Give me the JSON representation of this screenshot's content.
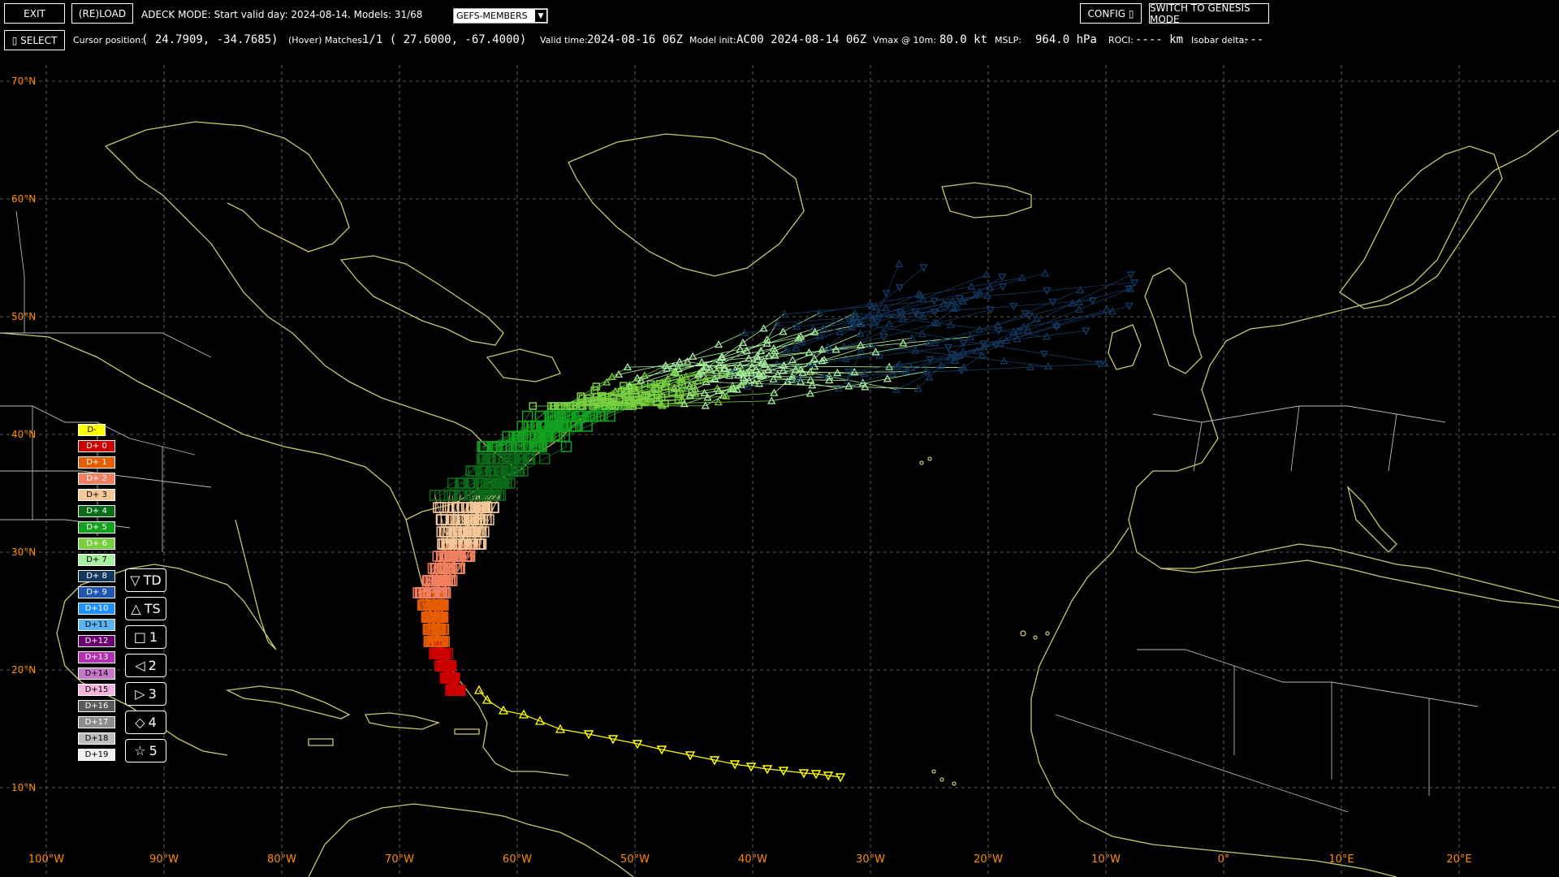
{
  "toolbar": {
    "exit_label": "EXIT",
    "reload_label": "(RE)LOAD",
    "mode_text": "ADECK MODE: Start valid day: 2024-08-14. Models: 31/68",
    "model_select": "GEFS-MEMBERS",
    "config_label": "CONFIG ▯",
    "genesis_label": "SWITCH TO GENESIS MODE",
    "select_label": "▯ SELECT",
    "cursor_label": "Cursor position:",
    "cursor_value": "( 24.7909,  -34.7685)",
    "hover_label": "(Hover) Matches:",
    "hover_value": "1/1  ( 27.6000,  -67.4000)",
    "valid_label": "Valid time:",
    "valid_value": "2024-08-16 06Z",
    "init_label": "Model init:",
    "init_value": "AC00 2024-08-14 06Z",
    "vmax_label": "Vmax @ 10m:",
    "vmax_value": "80.0 kt",
    "mslp_label": "MSLP:",
    "mslp_value": "964.0 hPa",
    "roci_label": "ROCI:",
    "roci_value": "---- km",
    "isobar_label": "Isobar delta:",
    "isobar_value": "---"
  },
  "map": {
    "lat_labels": [
      "70°N",
      "60°N",
      "50°N",
      "40°N",
      "30°N",
      "20°N",
      "10°N"
    ],
    "lon_labels": [
      "100°W",
      "90°W",
      "80°W",
      "70°W",
      "60°W",
      "50°W",
      "40°W",
      "30°W",
      "20°W",
      "10°W",
      "0°",
      "10°E",
      "20°E"
    ],
    "colors": {
      "coast": "#c8c870",
      "border": "#ffffff",
      "grid": "#777777",
      "label": "#ff8c00",
      "best_track": "#ffff00"
    }
  },
  "legend": {
    "days": [
      {
        "label": "D-",
        "color": "#ffff00"
      },
      {
        "label": "D+ 0",
        "color": "#cc0000"
      },
      {
        "label": "D+ 1",
        "color": "#e65c00"
      },
      {
        "label": "D+ 2",
        "color": "#f08060"
      },
      {
        "label": "D+ 3",
        "color": "#f5c89a"
      },
      {
        "label": "D+ 4",
        "color": "#0a6b1a"
      },
      {
        "label": "D+ 5",
        "color": "#14a020"
      },
      {
        "label": "D+ 6",
        "color": "#78d040"
      },
      {
        "label": "D+ 7",
        "color": "#a8f0a0"
      },
      {
        "label": "D+ 8",
        "color": "#14375e"
      },
      {
        "label": "D+ 9",
        "color": "#1f55b0"
      },
      {
        "label": "D+10",
        "color": "#1e90ff"
      },
      {
        "label": "D+11",
        "color": "#5ab4f0"
      },
      {
        "label": "D+12",
        "color": "#6a0070"
      },
      {
        "label": "D+13",
        "color": "#b030b0"
      },
      {
        "label": "D+14",
        "color": "#c878c8"
      },
      {
        "label": "D+15",
        "color": "#f4b4dc"
      },
      {
        "label": "D+16",
        "color": "#5a5a5a"
      },
      {
        "label": "D+17",
        "color": "#8c8c8c"
      },
      {
        "label": "D+18",
        "color": "#bebebe"
      },
      {
        "label": "D+19",
        "color": "#f0f0f0"
      }
    ],
    "symbols": [
      {
        "glyph": "▽",
        "label": "TD"
      },
      {
        "glyph": "△",
        "label": "TS"
      },
      {
        "glyph": "□",
        "label": "1"
      },
      {
        "glyph": "◁",
        "label": "2"
      },
      {
        "glyph": "▷",
        "label": "3"
      },
      {
        "glyph": "◇",
        "label": "4"
      },
      {
        "glyph": "☆",
        "label": "5"
      }
    ]
  }
}
